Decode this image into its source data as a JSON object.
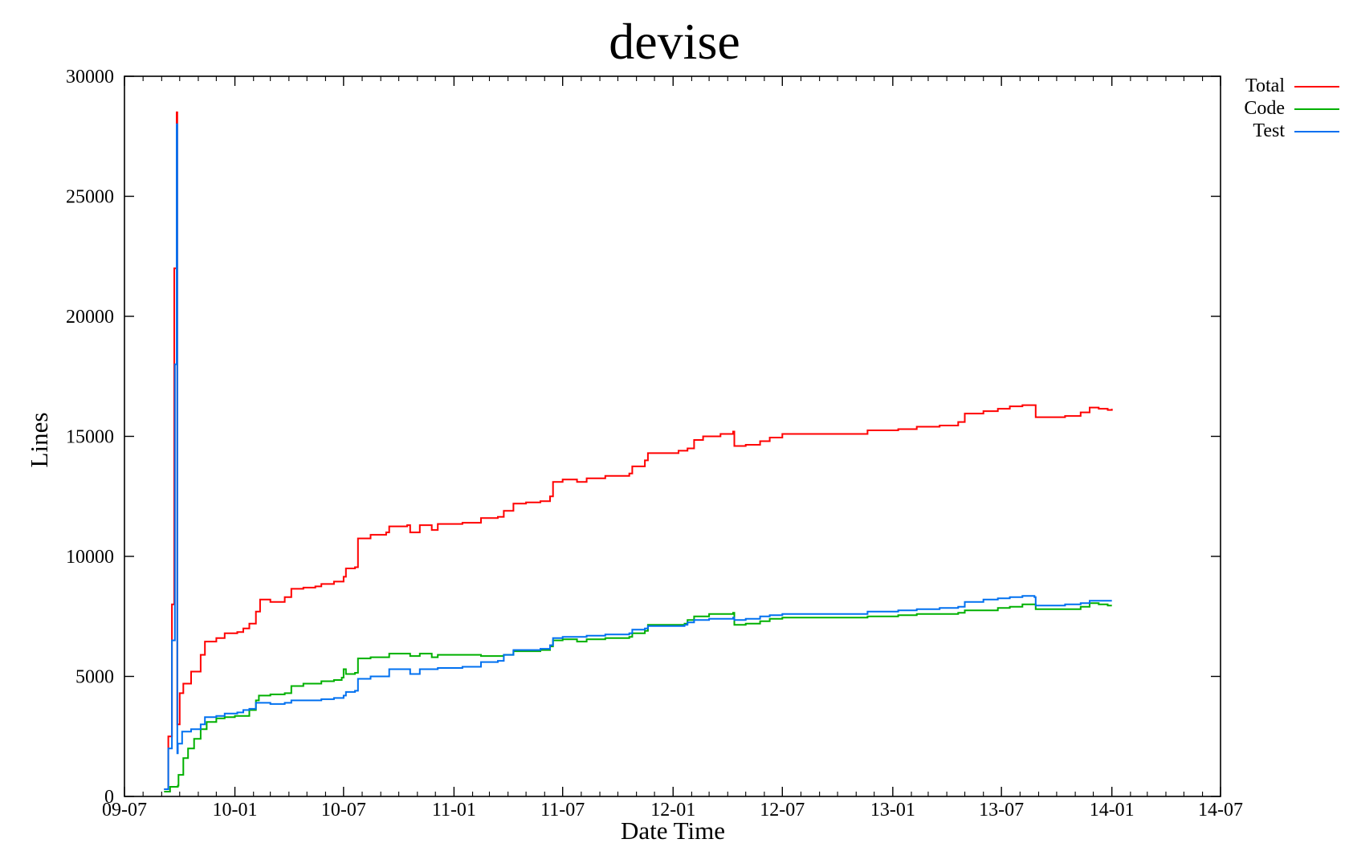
{
  "chart_data": {
    "type": "line",
    "title": "devise",
    "xlabel": "Date Time",
    "ylabel": "Lines",
    "xlim": [
      "2009-07-01",
      "2014-07-01"
    ],
    "ylim": [
      0,
      30000
    ],
    "x_ticks": [
      "09-07",
      "10-01",
      "10-07",
      "11-01",
      "11-07",
      "12-01",
      "12-07",
      "13-01",
      "13-07",
      "14-01",
      "14-07"
    ],
    "y_ticks": [
      "0",
      "5000",
      "10000",
      "15000",
      "20000",
      "25000",
      "30000"
    ],
    "grid": false,
    "legend_position": "top-right, outside plot",
    "series": [
      {
        "name": "Total",
        "color": "#ff0000",
        "points": [
          [
            "2009-09-05",
            300
          ],
          [
            "2009-09-12",
            2500
          ],
          [
            "2009-09-18",
            8000
          ],
          [
            "2009-09-22",
            22000
          ],
          [
            "2009-09-26",
            28500
          ],
          [
            "2009-09-27",
            3000
          ],
          [
            "2009-10-01",
            4300
          ],
          [
            "2009-10-07",
            4700
          ],
          [
            "2009-10-20",
            5200
          ],
          [
            "2009-11-05",
            5900
          ],
          [
            "2009-11-12",
            6450
          ],
          [
            "2009-12-01",
            6600
          ],
          [
            "2009-12-15",
            6800
          ],
          [
            "2010-01-05",
            6850
          ],
          [
            "2010-01-15",
            7000
          ],
          [
            "2010-01-25",
            7200
          ],
          [
            "2010-02-05",
            7700
          ],
          [
            "2010-02-12",
            8200
          ],
          [
            "2010-03-01",
            8100
          ],
          [
            "2010-03-25",
            8300
          ],
          [
            "2010-04-05",
            8650
          ],
          [
            "2010-04-25",
            8700
          ],
          [
            "2010-05-15",
            8750
          ],
          [
            "2010-05-25",
            8850
          ],
          [
            "2010-06-15",
            8950
          ],
          [
            "2010-07-01",
            9150
          ],
          [
            "2010-07-05",
            9500
          ],
          [
            "2010-07-20",
            9550
          ],
          [
            "2010-07-25",
            10750
          ],
          [
            "2010-08-15",
            10900
          ],
          [
            "2010-09-10",
            11000
          ],
          [
            "2010-09-15",
            11250
          ],
          [
            "2010-10-15",
            11300
          ],
          [
            "2010-10-20",
            11000
          ],
          [
            "2010-11-05",
            11300
          ],
          [
            "2010-11-25",
            11100
          ],
          [
            "2010-12-05",
            11350
          ],
          [
            "2011-01-15",
            11400
          ],
          [
            "2011-02-15",
            11600
          ],
          [
            "2011-03-15",
            11650
          ],
          [
            "2011-03-25",
            11900
          ],
          [
            "2011-04-10",
            12200
          ],
          [
            "2011-05-01",
            12250
          ],
          [
            "2011-05-25",
            12300
          ],
          [
            "2011-06-10",
            12500
          ],
          [
            "2011-06-15",
            13100
          ],
          [
            "2011-07-01",
            13200
          ],
          [
            "2011-07-25",
            13100
          ],
          [
            "2011-08-10",
            13250
          ],
          [
            "2011-09-10",
            13350
          ],
          [
            "2011-10-20",
            13450
          ],
          [
            "2011-10-25",
            13750
          ],
          [
            "2011-11-15",
            14000
          ],
          [
            "2011-11-20",
            14300
          ],
          [
            "2011-12-15",
            14300
          ],
          [
            "2012-01-10",
            14400
          ],
          [
            "2012-01-25",
            14500
          ],
          [
            "2012-02-05",
            14850
          ],
          [
            "2012-02-20",
            15000
          ],
          [
            "2012-03-20",
            15100
          ],
          [
            "2012-04-10",
            15200
          ],
          [
            "2012-04-12",
            14600
          ],
          [
            "2012-05-01",
            14650
          ],
          [
            "2012-05-25",
            14800
          ],
          [
            "2012-06-10",
            14950
          ],
          [
            "2012-07-01",
            15100
          ],
          [
            "2012-08-15",
            15100
          ],
          [
            "2012-10-20",
            15100
          ],
          [
            "2012-11-20",
            15250
          ],
          [
            "2013-01-10",
            15300
          ],
          [
            "2013-02-10",
            15400
          ],
          [
            "2013-03-20",
            15450
          ],
          [
            "2013-04-20",
            15600
          ],
          [
            "2013-05-01",
            15950
          ],
          [
            "2013-06-01",
            16050
          ],
          [
            "2013-06-25",
            16150
          ],
          [
            "2013-07-15",
            16250
          ],
          [
            "2013-08-05",
            16300
          ],
          [
            "2013-08-25",
            16300
          ],
          [
            "2013-08-27",
            15800
          ],
          [
            "2013-09-15",
            15800
          ],
          [
            "2013-10-15",
            15850
          ],
          [
            "2013-11-10",
            16000
          ],
          [
            "2013-11-25",
            16200
          ],
          [
            "2013-12-10",
            16150
          ],
          [
            "2013-12-25",
            16100
          ],
          [
            "2014-01-01",
            16150
          ]
        ]
      },
      {
        "name": "Code",
        "color": "#00b000",
        "points": [
          [
            "2009-09-05",
            200
          ],
          [
            "2009-09-15",
            400
          ],
          [
            "2009-09-28",
            450
          ],
          [
            "2009-09-29",
            900
          ],
          [
            "2009-10-07",
            1600
          ],
          [
            "2009-10-15",
            2000
          ],
          [
            "2009-10-25",
            2400
          ],
          [
            "2009-11-05",
            2800
          ],
          [
            "2009-11-15",
            3100
          ],
          [
            "2009-12-01",
            3250
          ],
          [
            "2009-12-15",
            3300
          ],
          [
            "2010-01-01",
            3350
          ],
          [
            "2010-01-25",
            3600
          ],
          [
            "2010-02-05",
            4000
          ],
          [
            "2010-02-10",
            4200
          ],
          [
            "2010-03-01",
            4250
          ],
          [
            "2010-03-25",
            4300
          ],
          [
            "2010-04-05",
            4600
          ],
          [
            "2010-04-25",
            4700
          ],
          [
            "2010-05-25",
            4800
          ],
          [
            "2010-06-15",
            4850
          ],
          [
            "2010-06-28",
            4950
          ],
          [
            "2010-07-01",
            5300
          ],
          [
            "2010-07-05",
            5100
          ],
          [
            "2010-07-20",
            5150
          ],
          [
            "2010-07-25",
            5750
          ],
          [
            "2010-08-15",
            5800
          ],
          [
            "2010-09-15",
            5950
          ],
          [
            "2010-10-10",
            5950
          ],
          [
            "2010-10-20",
            5850
          ],
          [
            "2010-11-05",
            5950
          ],
          [
            "2010-11-25",
            5800
          ],
          [
            "2010-12-05",
            5900
          ],
          [
            "2011-01-15",
            5900
          ],
          [
            "2011-02-15",
            5850
          ],
          [
            "2011-03-25",
            5900
          ],
          [
            "2011-04-10",
            6050
          ],
          [
            "2011-05-25",
            6100
          ],
          [
            "2011-06-10",
            6250
          ],
          [
            "2011-06-15",
            6500
          ],
          [
            "2011-07-01",
            6550
          ],
          [
            "2011-07-25",
            6450
          ],
          [
            "2011-08-10",
            6550
          ],
          [
            "2011-09-10",
            6600
          ],
          [
            "2011-10-20",
            6650
          ],
          [
            "2011-10-25",
            6800
          ],
          [
            "2011-11-15",
            6900
          ],
          [
            "2011-11-20",
            7150
          ],
          [
            "2011-12-15",
            7150
          ],
          [
            "2012-01-20",
            7200
          ],
          [
            "2012-01-25",
            7350
          ],
          [
            "2012-02-05",
            7500
          ],
          [
            "2012-03-01",
            7600
          ],
          [
            "2012-04-10",
            7650
          ],
          [
            "2012-04-12",
            7150
          ],
          [
            "2012-05-01",
            7200
          ],
          [
            "2012-05-25",
            7300
          ],
          [
            "2012-06-10",
            7400
          ],
          [
            "2012-07-01",
            7450
          ],
          [
            "2012-10-20",
            7450
          ],
          [
            "2012-11-20",
            7500
          ],
          [
            "2013-01-10",
            7550
          ],
          [
            "2013-02-10",
            7600
          ],
          [
            "2013-03-20",
            7600
          ],
          [
            "2013-04-20",
            7650
          ],
          [
            "2013-05-01",
            7750
          ],
          [
            "2013-06-25",
            7850
          ],
          [
            "2013-07-15",
            7900
          ],
          [
            "2013-08-05",
            8000
          ],
          [
            "2013-08-25",
            8000
          ],
          [
            "2013-08-27",
            7800
          ],
          [
            "2013-09-15",
            7800
          ],
          [
            "2013-10-15",
            7800
          ],
          [
            "2013-11-10",
            7900
          ],
          [
            "2013-11-25",
            8050
          ],
          [
            "2013-12-10",
            8000
          ],
          [
            "2013-12-25",
            7950
          ],
          [
            "2014-01-01",
            7950
          ]
        ]
      },
      {
        "name": "Test",
        "color": "#0070f0",
        "points": [
          [
            "2009-09-05",
            300
          ],
          [
            "2009-09-12",
            2000
          ],
          [
            "2009-09-18",
            6500
          ],
          [
            "2009-09-23",
            18000
          ],
          [
            "2009-09-26",
            28000
          ],
          [
            "2009-09-27",
            1800
          ],
          [
            "2009-09-28",
            2200
          ],
          [
            "2009-10-05",
            2700
          ],
          [
            "2009-10-20",
            2800
          ],
          [
            "2009-11-05",
            3000
          ],
          [
            "2009-11-12",
            3300
          ],
          [
            "2009-12-01",
            3350
          ],
          [
            "2009-12-15",
            3450
          ],
          [
            "2010-01-05",
            3500
          ],
          [
            "2010-01-15",
            3600
          ],
          [
            "2010-01-25",
            3650
          ],
          [
            "2010-02-05",
            3900
          ],
          [
            "2010-03-01",
            3850
          ],
          [
            "2010-03-25",
            3900
          ],
          [
            "2010-04-05",
            4000
          ],
          [
            "2010-05-25",
            4050
          ],
          [
            "2010-06-15",
            4100
          ],
          [
            "2010-07-01",
            4200
          ],
          [
            "2010-07-05",
            4350
          ],
          [
            "2010-07-20",
            4400
          ],
          [
            "2010-07-25",
            4900
          ],
          [
            "2010-08-15",
            5000
          ],
          [
            "2010-09-10",
            5000
          ],
          [
            "2010-09-15",
            5300
          ],
          [
            "2010-10-15",
            5300
          ],
          [
            "2010-10-20",
            5100
          ],
          [
            "2010-11-05",
            5300
          ],
          [
            "2010-12-05",
            5350
          ],
          [
            "2011-01-15",
            5400
          ],
          [
            "2011-02-15",
            5600
          ],
          [
            "2011-03-15",
            5650
          ],
          [
            "2011-03-25",
            5900
          ],
          [
            "2011-04-10",
            6100
          ],
          [
            "2011-05-25",
            6150
          ],
          [
            "2011-06-10",
            6300
          ],
          [
            "2011-06-15",
            6600
          ],
          [
            "2011-07-01",
            6650
          ],
          [
            "2011-08-10",
            6700
          ],
          [
            "2011-09-10",
            6750
          ],
          [
            "2011-10-20",
            6800
          ],
          [
            "2011-10-25",
            6950
          ],
          [
            "2011-11-15",
            7000
          ],
          [
            "2011-11-20",
            7100
          ],
          [
            "2011-12-15",
            7100
          ],
          [
            "2012-01-20",
            7150
          ],
          [
            "2012-01-25",
            7250
          ],
          [
            "2012-02-05",
            7350
          ],
          [
            "2012-03-01",
            7400
          ],
          [
            "2012-04-10",
            7450
          ],
          [
            "2012-04-12",
            7350
          ],
          [
            "2012-05-01",
            7400
          ],
          [
            "2012-05-25",
            7500
          ],
          [
            "2012-06-10",
            7550
          ],
          [
            "2012-07-01",
            7600
          ],
          [
            "2012-10-20",
            7600
          ],
          [
            "2012-11-20",
            7700
          ],
          [
            "2013-01-10",
            7750
          ],
          [
            "2013-02-10",
            7800
          ],
          [
            "2013-03-20",
            7850
          ],
          [
            "2013-04-20",
            7900
          ],
          [
            "2013-05-01",
            8100
          ],
          [
            "2013-06-01",
            8200
          ],
          [
            "2013-06-25",
            8250
          ],
          [
            "2013-07-15",
            8300
          ],
          [
            "2013-08-05",
            8350
          ],
          [
            "2013-08-25",
            8300
          ],
          [
            "2013-08-27",
            7950
          ],
          [
            "2013-09-15",
            7950
          ],
          [
            "2013-10-15",
            8000
          ],
          [
            "2013-11-10",
            8050
          ],
          [
            "2013-11-25",
            8150
          ],
          [
            "2013-12-10",
            8150
          ],
          [
            "2014-01-01",
            8150
          ]
        ]
      }
    ]
  }
}
